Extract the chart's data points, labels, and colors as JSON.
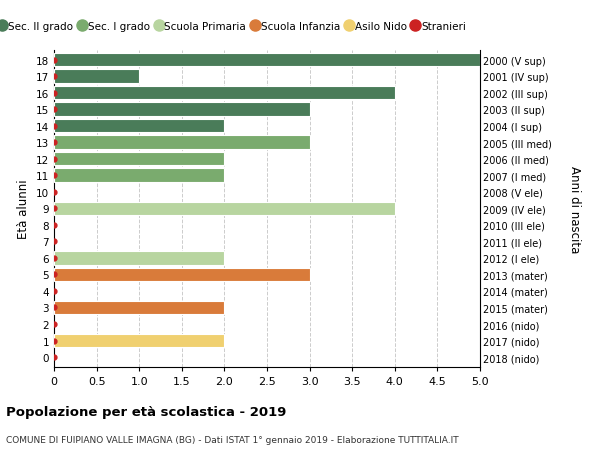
{
  "ages": [
    18,
    17,
    16,
    15,
    14,
    13,
    12,
    11,
    10,
    9,
    8,
    7,
    6,
    5,
    4,
    3,
    2,
    1,
    0
  ],
  "right_labels": [
    "2000 (V sup)",
    "2001 (IV sup)",
    "2002 (III sup)",
    "2003 (II sup)",
    "2004 (I sup)",
    "2005 (III med)",
    "2006 (II med)",
    "2007 (I med)",
    "2008 (V ele)",
    "2009 (IV ele)",
    "2010 (III ele)",
    "2011 (II ele)",
    "2012 (I ele)",
    "2013 (mater)",
    "2014 (mater)",
    "2015 (mater)",
    "2016 (nido)",
    "2017 (nido)",
    "2018 (nido)"
  ],
  "values": [
    5,
    1,
    4,
    3,
    2,
    3,
    2,
    2,
    0,
    4,
    0,
    0,
    2,
    3,
    0,
    2,
    0,
    2,
    0
  ],
  "bar_colors": [
    "#4a7c59",
    "#4a7c59",
    "#4a7c59",
    "#4a7c59",
    "#4a7c59",
    "#7aab6e",
    "#7aab6e",
    "#7aab6e",
    "#b8d5a0",
    "#b8d5a0",
    "#b8d5a0",
    "#b8d5a0",
    "#b8d5a0",
    "#d97b3a",
    "#d97b3a",
    "#d97b3a",
    "#f0d070",
    "#f0d070",
    "#f0d070"
  ],
  "stranieri_dots": [
    18,
    17,
    16,
    15,
    14,
    13,
    12,
    11,
    10,
    9,
    8,
    7,
    6,
    5,
    4,
    3,
    2,
    1,
    0
  ],
  "legend_labels": [
    "Sec. II grado",
    "Sec. I grado",
    "Scuola Primaria",
    "Scuola Infanzia",
    "Asilo Nido",
    "Stranieri"
  ],
  "legend_colors": [
    "#4a7c59",
    "#7aab6e",
    "#b8d5a0",
    "#d97b3a",
    "#f0d070",
    "#cc2222"
  ],
  "ylabel_left": "Età alunni",
  "ylabel_right": "Anni di nascita",
  "title": "Popolazione per età scolastica - 2019",
  "subtitle": "COMUNE DI FUIPIANO VALLE IMAGNA (BG) - Dati ISTAT 1° gennaio 2019 - Elaborazione TUTTITALIA.IT",
  "xlim": [
    0,
    5.0
  ],
  "xticks": [
    0,
    0.5,
    1.0,
    1.5,
    2.0,
    2.5,
    3.0,
    3.5,
    4.0,
    4.5,
    5.0
  ],
  "bg_color": "#ffffff",
  "grid_color": "#cccccc",
  "bar_height": 0.82
}
